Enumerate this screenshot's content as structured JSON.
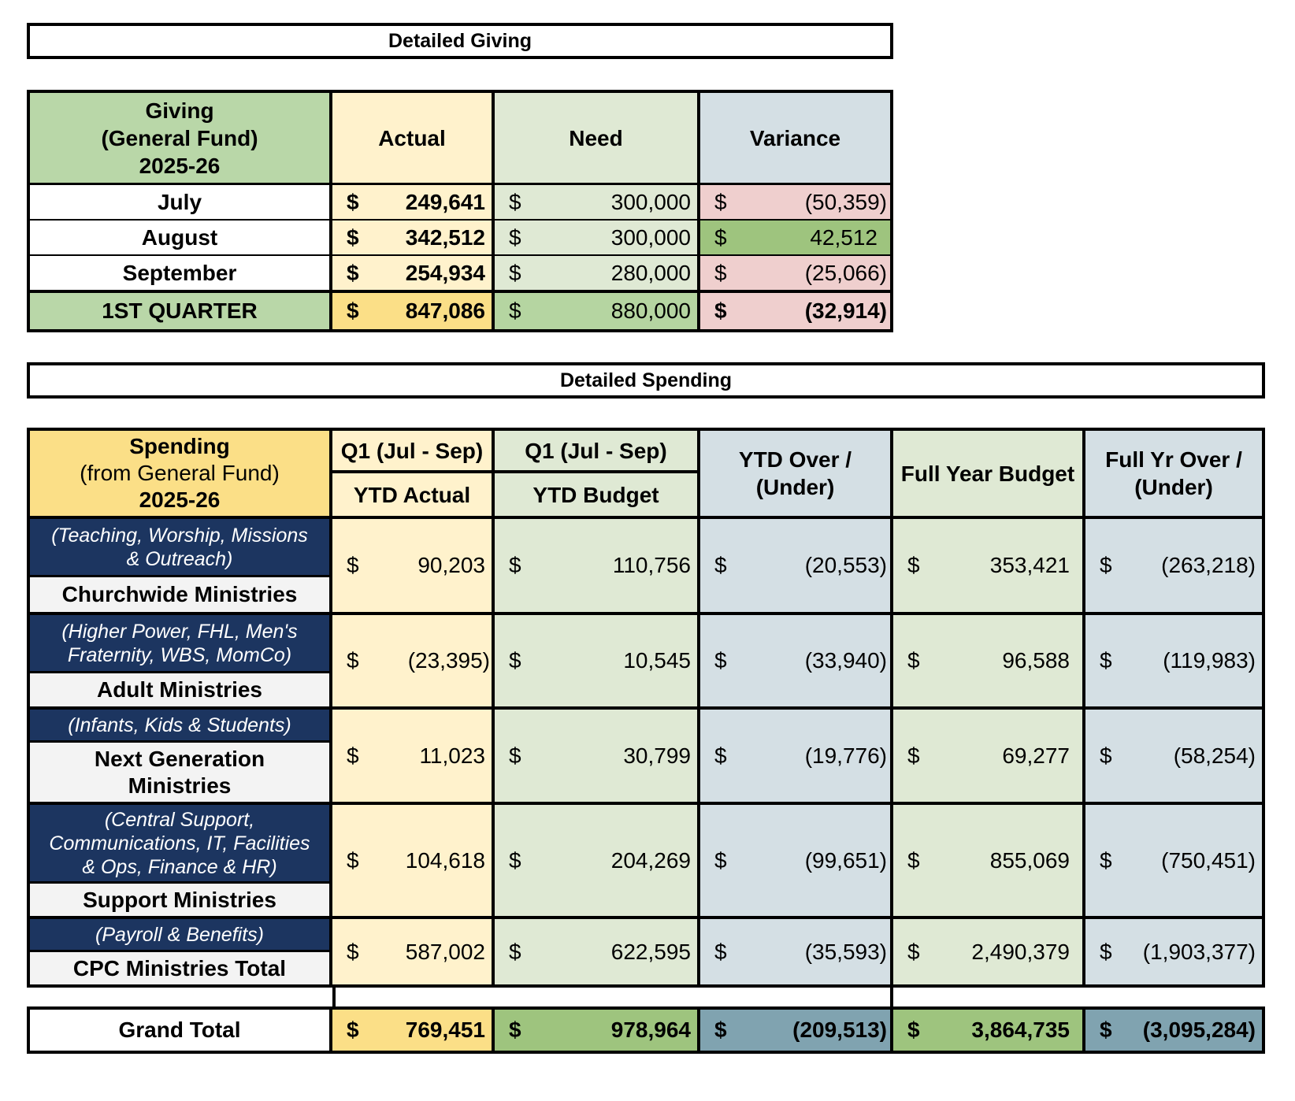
{
  "giving": {
    "title": "Detailed Giving",
    "header": {
      "label_line1": "Giving",
      "label_line2": "(General Fund)",
      "label_line3": "2025-26",
      "actual": "Actual",
      "need": "Need",
      "variance": "Variance"
    },
    "currency": "$",
    "rows": [
      {
        "label": "July",
        "actual": "249,641",
        "need": "300,000",
        "variance": "(50,359)"
      },
      {
        "label": "August",
        "actual": "342,512",
        "need": "300,000",
        "variance": "42,512"
      },
      {
        "label": "September",
        "actual": "254,934",
        "need": "280,000",
        "variance": "(25,066)"
      }
    ],
    "total": {
      "label": "1ST QUARTER",
      "actual": "847,086",
      "need": "880,000",
      "variance": "(32,914)"
    },
    "colors": {
      "negative_variance": "#efcfce",
      "positive_variance": "#9ec47e"
    }
  },
  "spending": {
    "title": "Detailed Spending",
    "header": {
      "label_line1": "Spending",
      "label_line2": "(from General Fund)",
      "label_line3": "2025-26",
      "q1_actual_top": "Q1 (Jul - Sep)",
      "q1_actual_bottom": "YTD Actual",
      "q1_budget_top": "Q1 (Jul - Sep)",
      "q1_budget_bottom": "YTD Budget",
      "ytd_over_line1": "YTD Over /",
      "ytd_over_line2": "(Under)",
      "full_year_budget": "Full Year Budget",
      "full_over_line1": "Full Yr Over /",
      "full_over_line2": "(Under)"
    },
    "currency": "$",
    "rows": [
      {
        "desc_line1": "(Teaching, Worship, Missions",
        "desc_line2": "& Outreach)",
        "desc_line3": "",
        "label_line1": "Churchwide Ministries",
        "label_line2": "",
        "ytd_actual": "90,203",
        "ytd_budget": "110,756",
        "ytd_over": "(20,553)",
        "full_budget": "353,421",
        "full_over": "(263,218)"
      },
      {
        "desc_line1": "(Higher Power, FHL, Men's",
        "desc_line2": "Fraternity, WBS, MomCo)",
        "desc_line3": "",
        "label_line1": "Adult Ministries",
        "label_line2": "",
        "ytd_actual": "(23,395)",
        "ytd_budget": "10,545",
        "ytd_over": "(33,940)",
        "full_budget": "96,588",
        "full_over": "(119,983)"
      },
      {
        "desc_line1": "(Infants, Kids & Students)",
        "desc_line2": "",
        "desc_line3": "",
        "label_line1": "Next Generation",
        "label_line2": "Ministries",
        "ytd_actual": "11,023",
        "ytd_budget": "30,799",
        "ytd_over": "(19,776)",
        "full_budget": "69,277",
        "full_over": "(58,254)"
      },
      {
        "desc_line1": "(Central Support,",
        "desc_line2": "Communications, IT, Facilities",
        "desc_line3": "& Ops, Finance & HR)",
        "label_line1": "Support Ministries",
        "label_line2": "",
        "ytd_actual": "104,618",
        "ytd_budget": "204,269",
        "ytd_over": "(99,651)",
        "full_budget": "855,069",
        "full_over": "(750,451)"
      },
      {
        "desc_line1": "(Payroll & Benefits)",
        "desc_line2": "",
        "desc_line3": "",
        "label_line1": "CPC Ministries Total",
        "label_line2": "",
        "ytd_actual": "587,002",
        "ytd_budget": "622,595",
        "ytd_over": "(35,593)",
        "full_budget": "2,490,379",
        "full_over": "(1,903,377)"
      }
    ],
    "grand_total": {
      "label": "Grand Total",
      "ytd_actual": "769,451",
      "ytd_budget": "978,964",
      "ytd_over": "(209,513)",
      "full_budget": "3,864,735",
      "full_over": "(3,095,284)"
    }
  }
}
